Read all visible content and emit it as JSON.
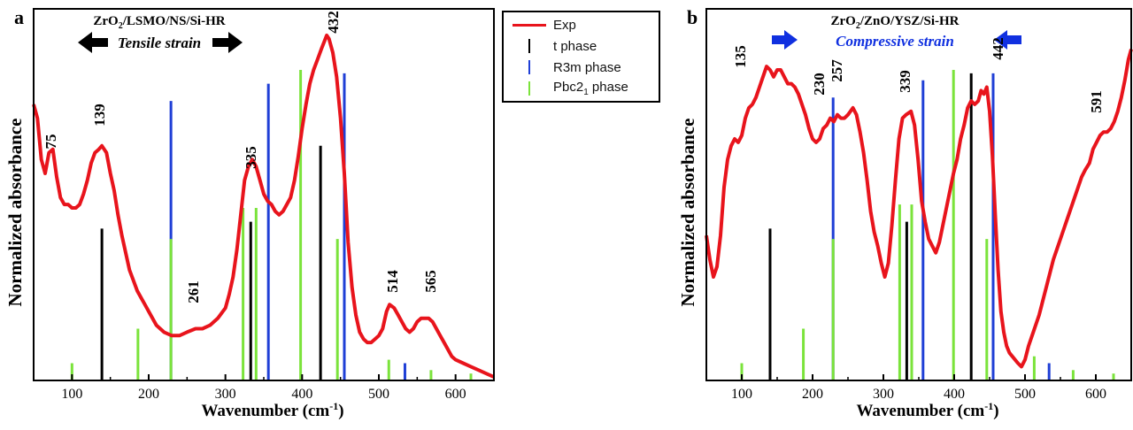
{
  "panels": [
    {
      "letter": "a",
      "heading": "ZrO2/LSMO/NS/Si-HR",
      "strain_label": "Tensile strain",
      "strain_color": "#000000",
      "peak_labels": [
        "75",
        "139",
        "261",
        "335",
        "432",
        "514",
        "565"
      ]
    },
    {
      "letter": "b",
      "heading": "ZrO2/ZnO/YSZ/Si-HR",
      "strain_label": "Compressive strain",
      "strain_color": "#1030e0",
      "peak_labels": [
        "135",
        "230",
        "257",
        "339",
        "442",
        "591"
      ]
    }
  ],
  "legend": {
    "entries": [
      {
        "label": "Exp",
        "color": "#e8141c",
        "mark": "line"
      },
      {
        "label": "t phase",
        "color": "#000000",
        "mark": "bar"
      },
      {
        "label": "R3m phase",
        "color": "#1f3fd6",
        "mark": "bar"
      },
      {
        "label": "Pbc21 phase",
        "color": "#7be33b",
        "mark": "bar"
      }
    ]
  },
  "chart_data": [
    {
      "type": "line",
      "panel": "a",
      "xlabel": "Wavenumber (cm-1)",
      "ylabel": "Normalized absorbance",
      "xlim": [
        50,
        650
      ],
      "ylim": [
        0,
        1
      ],
      "xticks": [
        100,
        200,
        300,
        400,
        500,
        600
      ],
      "series": [
        {
          "name": "Exp",
          "color": "#e8141c",
          "x": [
            50,
            55,
            60,
            65,
            70,
            75,
            80,
            85,
            90,
            95,
            100,
            105,
            110,
            115,
            120,
            125,
            130,
            135,
            139,
            145,
            150,
            155,
            160,
            165,
            170,
            175,
            180,
            185,
            190,
            195,
            200,
            210,
            220,
            230,
            240,
            250,
            261,
            270,
            280,
            290,
            300,
            305,
            310,
            315,
            320,
            325,
            330,
            335,
            340,
            345,
            350,
            355,
            360,
            365,
            370,
            375,
            380,
            385,
            390,
            395,
            400,
            405,
            410,
            415,
            420,
            425,
            432,
            435,
            440,
            445,
            450,
            455,
            460,
            465,
            470,
            475,
            480,
            485,
            490,
            495,
            500,
            505,
            510,
            514,
            520,
            525,
            530,
            535,
            540,
            545,
            550,
            555,
            560,
            565,
            570,
            575,
            580,
            585,
            590,
            595,
            600,
            610,
            620,
            630,
            640,
            650
          ],
          "y": [
            0.8,
            0.76,
            0.64,
            0.6,
            0.66,
            0.67,
            0.59,
            0.53,
            0.51,
            0.51,
            0.5,
            0.5,
            0.51,
            0.54,
            0.58,
            0.63,
            0.66,
            0.67,
            0.68,
            0.66,
            0.6,
            0.55,
            0.48,
            0.42,
            0.37,
            0.32,
            0.29,
            0.26,
            0.24,
            0.22,
            0.2,
            0.16,
            0.14,
            0.13,
            0.13,
            0.14,
            0.15,
            0.15,
            0.16,
            0.18,
            0.21,
            0.25,
            0.3,
            0.38,
            0.48,
            0.58,
            0.62,
            0.64,
            0.62,
            0.58,
            0.54,
            0.52,
            0.51,
            0.49,
            0.48,
            0.49,
            0.51,
            0.53,
            0.58,
            0.65,
            0.73,
            0.8,
            0.86,
            0.9,
            0.93,
            0.96,
            1.0,
            0.99,
            0.95,
            0.88,
            0.76,
            0.6,
            0.4,
            0.27,
            0.19,
            0.14,
            0.12,
            0.11,
            0.11,
            0.12,
            0.13,
            0.15,
            0.2,
            0.22,
            0.21,
            0.19,
            0.17,
            0.15,
            0.14,
            0.15,
            0.17,
            0.18,
            0.18,
            0.18,
            0.17,
            0.15,
            0.13,
            0.11,
            0.09,
            0.07,
            0.06,
            0.05,
            0.04,
            0.03,
            0.02,
            0.01
          ]
        },
        {
          "name": "t phase",
          "color": "#000000",
          "x": [
            139,
            333,
            424
          ],
          "y": [
            0.44,
            0.46,
            0.68
          ]
        },
        {
          "name": "R3m phase",
          "color": "#1f3fd6",
          "x": [
            229,
            356,
            455,
            534
          ],
          "y": [
            0.81,
            0.86,
            0.89,
            0.05
          ]
        },
        {
          "name": "Pbc21 phase",
          "color": "#7be33b",
          "x": [
            100,
            186,
            229,
            323,
            340,
            398,
            446,
            513,
            568,
            620
          ],
          "y": [
            0.05,
            0.15,
            0.41,
            0.5,
            0.5,
            0.9,
            0.41,
            0.06,
            0.03,
            0.02
          ]
        }
      ]
    },
    {
      "type": "line",
      "panel": "b",
      "xlabel": "Wavenumber (cm-1)",
      "ylabel": "Normalized absorbance",
      "xlim": [
        50,
        650
      ],
      "ylim": [
        0,
        1
      ],
      "xticks": [
        100,
        200,
        300,
        400,
        500,
        600
      ],
      "series": [
        {
          "name": "Exp",
          "color": "#e8141c",
          "x": [
            50,
            55,
            60,
            65,
            70,
            75,
            80,
            85,
            90,
            95,
            100,
            105,
            110,
            115,
            120,
            125,
            130,
            135,
            140,
            145,
            150,
            155,
            160,
            165,
            170,
            175,
            180,
            185,
            190,
            195,
            200,
            205,
            210,
            215,
            220,
            225,
            230,
            235,
            240,
            245,
            250,
            257,
            262,
            267,
            272,
            277,
            282,
            287,
            292,
            297,
            302,
            307,
            312,
            317,
            322,
            327,
            332,
            339,
            344,
            349,
            354,
            359,
            364,
            369,
            374,
            379,
            384,
            389,
            394,
            399,
            404,
            409,
            414,
            419,
            424,
            429,
            434,
            438,
            442,
            446,
            450,
            454,
            458,
            462,
            466,
            470,
            474,
            478,
            482,
            486,
            490,
            495,
            500,
            505,
            510,
            515,
            520,
            525,
            530,
            535,
            540,
            545,
            550,
            555,
            560,
            565,
            570,
            575,
            580,
            585,
            591,
            596,
            601,
            606,
            611,
            616,
            621,
            626,
            631,
            636,
            641,
            646,
            650
          ],
          "y": [
            0.42,
            0.35,
            0.3,
            0.33,
            0.42,
            0.56,
            0.64,
            0.68,
            0.7,
            0.69,
            0.71,
            0.76,
            0.79,
            0.8,
            0.82,
            0.85,
            0.88,
            0.91,
            0.9,
            0.88,
            0.9,
            0.9,
            0.88,
            0.86,
            0.86,
            0.85,
            0.83,
            0.8,
            0.77,
            0.73,
            0.7,
            0.69,
            0.7,
            0.73,
            0.74,
            0.76,
            0.75,
            0.77,
            0.76,
            0.76,
            0.77,
            0.79,
            0.77,
            0.72,
            0.66,
            0.58,
            0.49,
            0.43,
            0.39,
            0.34,
            0.3,
            0.34,
            0.45,
            0.58,
            0.7,
            0.76,
            0.77,
            0.78,
            0.74,
            0.64,
            0.52,
            0.46,
            0.41,
            0.39,
            0.37,
            0.4,
            0.45,
            0.5,
            0.55,
            0.6,
            0.64,
            0.7,
            0.74,
            0.79,
            0.81,
            0.8,
            0.81,
            0.84,
            0.83,
            0.85,
            0.78,
            0.65,
            0.48,
            0.32,
            0.2,
            0.14,
            0.1,
            0.08,
            0.07,
            0.06,
            0.05,
            0.04,
            0.06,
            0.1,
            0.13,
            0.16,
            0.19,
            0.23,
            0.27,
            0.31,
            0.35,
            0.38,
            0.41,
            0.44,
            0.47,
            0.5,
            0.53,
            0.56,
            0.59,
            0.61,
            0.63,
            0.67,
            0.69,
            0.71,
            0.72,
            0.72,
            0.73,
            0.75,
            0.78,
            0.82,
            0.87,
            0.93,
            0.96
          ]
        },
        {
          "name": "t phase",
          "color": "#000000",
          "x": [
            140,
            333,
            424
          ],
          "y": [
            0.44,
            0.46,
            0.89
          ]
        },
        {
          "name": "R3m phase",
          "color": "#1f3fd6",
          "x": [
            229,
            356,
            455,
            534
          ],
          "y": [
            0.82,
            0.87,
            0.89,
            0.05
          ]
        },
        {
          "name": "Pbc21 phase",
          "color": "#7be33b",
          "x": [
            100,
            187,
            229,
            323,
            340,
            399,
            446,
            513,
            568,
            625
          ],
          "y": [
            0.05,
            0.15,
            0.41,
            0.51,
            0.51,
            0.9,
            0.41,
            0.07,
            0.03,
            0.02
          ]
        }
      ]
    }
  ]
}
